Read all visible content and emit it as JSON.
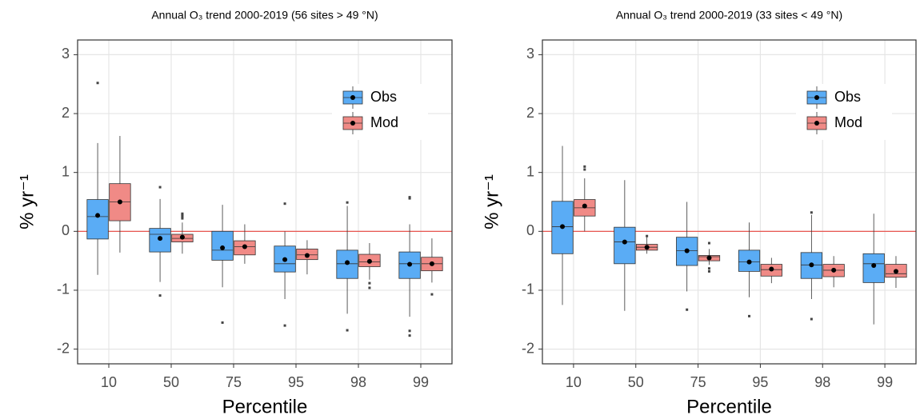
{
  "chart_data": [
    {
      "type": "box",
      "title": "Annual O₃ trend 2000-2019 (56 sites > 49 °N)",
      "xlabel": "Percentile",
      "ylabel": "% yr⁻¹",
      "categories": [
        "10",
        "50",
        "75",
        "95",
        "98",
        "99"
      ],
      "ylim": [
        -2.25,
        3.25
      ],
      "yticks": [
        -2,
        -1,
        0,
        1,
        2,
        3
      ],
      "grid": true,
      "hline": 0,
      "hline_color": "#e8433c",
      "legend": "top right",
      "series": [
        {
          "name": "Obs",
          "color": "#5aacf5",
          "low": [
            -0.74,
            -0.86,
            -0.95,
            -1.15,
            -1.4,
            -1.45
          ],
          "q1": [
            -0.13,
            -0.35,
            -0.49,
            -0.69,
            -0.8,
            -0.8
          ],
          "median": [
            0.25,
            -0.05,
            -0.32,
            -0.55,
            -0.55,
            -0.55
          ],
          "q3": [
            0.54,
            0.05,
            0.0,
            -0.25,
            -0.32,
            -0.35
          ],
          "high": [
            1.5,
            0.55,
            0.45,
            0.0,
            0.43,
            0.12
          ],
          "mean": [
            0.27,
            -0.12,
            -0.28,
            -0.48,
            -0.53,
            -0.56
          ],
          "outliers": [
            [
              2.52
            ],
            [
              0.75,
              -1.09
            ],
            [
              -1.55
            ],
            [
              0.47,
              -1.6
            ],
            [
              0.49,
              -1.68
            ],
            [
              0.58,
              0.56,
              -1.69,
              -1.77
            ]
          ]
        },
        {
          "name": "Mod",
          "color": "#f08a86",
          "low": [
            -0.36,
            -0.38,
            -0.55,
            -0.73,
            -0.82,
            -0.87
          ],
          "q1": [
            0.18,
            -0.18,
            -0.4,
            -0.48,
            -0.6,
            -0.67
          ],
          "median": [
            0.5,
            -0.12,
            -0.26,
            -0.4,
            -0.52,
            -0.55
          ],
          "q3": [
            0.81,
            -0.05,
            -0.16,
            -0.3,
            -0.39,
            -0.44
          ],
          "high": [
            1.62,
            0.15,
            0.12,
            -0.15,
            -0.2,
            -0.12
          ],
          "mean": [
            0.5,
            -0.1,
            -0.26,
            -0.41,
            -0.51,
            -0.55
          ],
          "outliers": [
            [],
            [
              0.22,
              0.25,
              0.28,
              0.3
            ],
            [],
            [],
            [
              -0.88,
              -0.96
            ],
            [
              -1.07
            ]
          ]
        }
      ]
    },
    {
      "type": "box",
      "title": "Annual O₃ trend 2000-2019 (33 sites < 49 °N)",
      "xlabel": "Percentile",
      "ylabel": "% yr⁻¹",
      "categories": [
        "10",
        "50",
        "75",
        "95",
        "98",
        "99"
      ],
      "ylim": [
        -2.25,
        3.25
      ],
      "yticks": [
        -2,
        -1,
        0,
        1,
        2,
        3
      ],
      "grid": true,
      "hline": 0,
      "hline_color": "#e8433c",
      "legend": "top right",
      "series": [
        {
          "name": "Obs",
          "color": "#5aacf5",
          "low": [
            -1.25,
            -1.35,
            -1.02,
            -1.12,
            -1.15,
            -1.58
          ],
          "q1": [
            -0.38,
            -0.55,
            -0.58,
            -0.68,
            -0.8,
            -0.87
          ],
          "median": [
            0.08,
            -0.18,
            -0.33,
            -0.52,
            -0.57,
            -0.55
          ],
          "q3": [
            0.51,
            0.07,
            -0.1,
            -0.32,
            -0.36,
            -0.38
          ],
          "high": [
            1.45,
            0.87,
            0.5,
            0.15,
            0.28,
            0.3
          ],
          "mean": [
            0.08,
            -0.18,
            -0.33,
            -0.52,
            -0.57,
            -0.58
          ],
          "outliers": [
            [],
            [],
            [
              -1.33
            ],
            [
              -1.44
            ],
            [
              0.32,
              -1.49
            ],
            []
          ]
        },
        {
          "name": "Mod",
          "color": "#f08a86",
          "low": [
            0.0,
            -0.38,
            -0.57,
            -0.88,
            -0.95,
            -0.96
          ],
          "q1": [
            0.26,
            -0.32,
            -0.5,
            -0.76,
            -0.77,
            -0.78
          ],
          "median": [
            0.4,
            -0.27,
            -0.43,
            -0.65,
            -0.66,
            -0.72
          ],
          "q3": [
            0.54,
            -0.22,
            -0.41,
            -0.56,
            -0.56,
            -0.56
          ],
          "high": [
            0.9,
            -0.1,
            -0.3,
            -0.45,
            -0.42,
            -0.42
          ],
          "mean": [
            0.43,
            -0.27,
            -0.45,
            -0.64,
            -0.66,
            -0.68
          ],
          "outliers": [
            [
              1.05,
              1.1
            ],
            [
              -0.08
            ],
            [
              -0.2,
              -0.63,
              -0.68
            ],
            [],
            [],
            []
          ]
        }
      ]
    }
  ]
}
